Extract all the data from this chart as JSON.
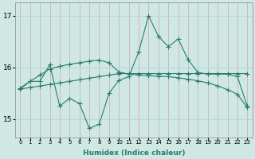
{
  "xlabel": "Humidex (Indice chaleur)",
  "x": [
    0,
    1,
    2,
    3,
    4,
    5,
    6,
    7,
    8,
    9,
    10,
    11,
    12,
    13,
    14,
    15,
    16,
    17,
    18,
    19,
    20,
    21,
    22,
    23
  ],
  "y_jagged": [
    15.6,
    15.73,
    15.73,
    16.05,
    15.25,
    15.4,
    15.3,
    14.82,
    14.9,
    15.5,
    15.75,
    15.82,
    16.3,
    17.0,
    16.6,
    16.4,
    16.55,
    16.15,
    15.9,
    15.87,
    15.87,
    15.87,
    15.82,
    15.25
  ],
  "y_trend_up": [
    15.58,
    15.61,
    15.64,
    15.67,
    15.7,
    15.73,
    15.76,
    15.79,
    15.82,
    15.85,
    15.88,
    15.88,
    15.88,
    15.88,
    15.88,
    15.88,
    15.88,
    15.88,
    15.88,
    15.88,
    15.88,
    15.88,
    15.88,
    15.88
  ],
  "y_trend_down": [
    15.58,
    15.73,
    15.85,
    15.97,
    16.02,
    16.06,
    16.09,
    16.12,
    16.14,
    16.09,
    15.91,
    15.87,
    15.85,
    15.84,
    15.83,
    15.82,
    15.8,
    15.77,
    15.74,
    15.7,
    15.64,
    15.57,
    15.48,
    15.22
  ],
  "line_color": "#2a7a6e",
  "bg_color": "#d0e8e4",
  "grid_v_color": "#c8a8a8",
  "grid_h_color": "#b8d8d4",
  "ylim_min": 14.65,
  "ylim_max": 17.25,
  "yticks": [
    15,
    16,
    17
  ],
  "marker": "+",
  "markersize": 4.0,
  "linewidth": 0.8
}
